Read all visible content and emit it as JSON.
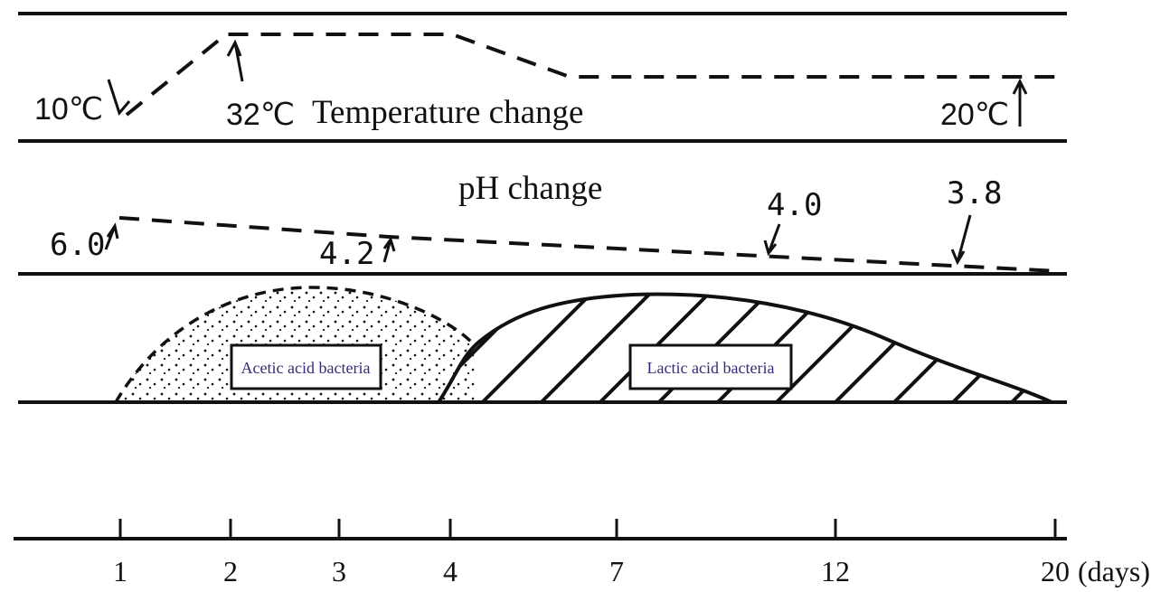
{
  "temperature": {
    "title": "Temperature change",
    "start_label": "10℃",
    "peak_label": "32℃",
    "end_label": "20℃"
  },
  "ph": {
    "title": "pH change",
    "labels": [
      "6.0",
      "4.2",
      "4.0",
      "3.8"
    ]
  },
  "bacteria": {
    "acetic_label": "Acetic acid bacteria",
    "lactic_label": "Lactic acid bacteria"
  },
  "time_axis": {
    "ticks": [
      "1",
      "2",
      "3",
      "4",
      "7",
      "12",
      "20"
    ],
    "unit": "(days)"
  },
  "colors": {
    "ink": "#111111",
    "box_text": "#3a2a78",
    "background": "#ffffff"
  }
}
